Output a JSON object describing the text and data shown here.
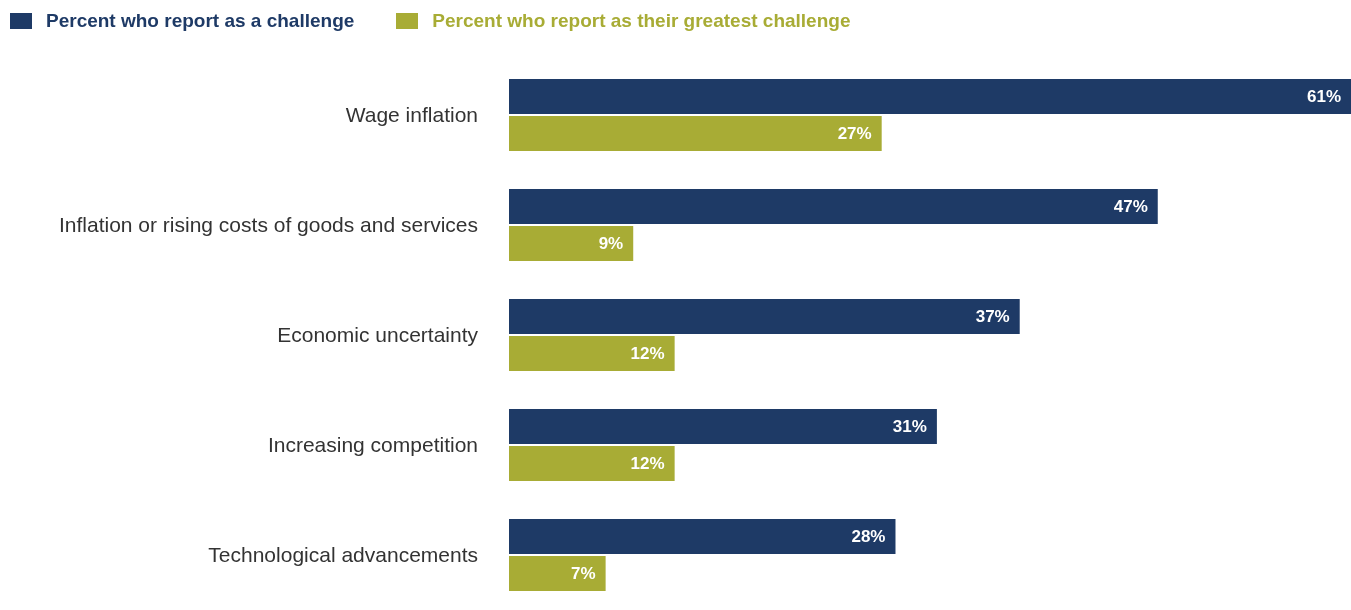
{
  "chart_data": {
    "type": "bar",
    "orientation": "horizontal",
    "legend": "top left",
    "categories": [
      "Wage inflation",
      "Inflation or rising costs of goods and services",
      "Economic uncertainty",
      "Increasing competition",
      "Technological advancements"
    ],
    "series": [
      {
        "name": "Percent who report as a challenge",
        "color": "#1e3a66",
        "values": [
          61,
          47,
          37,
          31,
          28
        ],
        "value_labels": [
          "61%",
          "47%",
          "37%",
          "31%",
          "28%"
        ]
      },
      {
        "name": "Percent who report as their greatest challenge",
        "color": "#a8ac35",
        "values": [
          27,
          9,
          12,
          12,
          7
        ],
        "value_labels": [
          "27%",
          "9%",
          "12%",
          "12%",
          "7%"
        ]
      }
    ]
  }
}
